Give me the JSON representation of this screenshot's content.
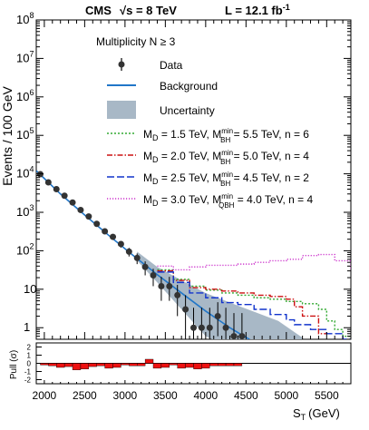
{
  "header": {
    "experiment": "CMS",
    "energy_label": "√s = 8 TeV",
    "lumi_label": "L = 12.1 fb",
    "lumi_sup": "-1"
  },
  "chart_data": [
    {
      "type": "line",
      "panel": "main",
      "ylabel": "Events / 100 GeV",
      "yscale": "log",
      "ylim": [
        0.5,
        100000000
      ],
      "xlim": [
        1900,
        5800
      ],
      "y_ticks": [
        {
          "value": 1,
          "label": "1"
        },
        {
          "value": 10,
          "label": "10"
        },
        {
          "value": 100,
          "label": "10",
          "exp": "2"
        },
        {
          "value": 1000,
          "label": "10",
          "exp": "3"
        },
        {
          "value": 10000,
          "label": "10",
          "exp": "4"
        },
        {
          "value": 100000,
          "label": "10",
          "exp": "5"
        },
        {
          "value": 1000000,
          "label": "10",
          "exp": "6"
        },
        {
          "value": 10000000,
          "label": "10",
          "exp": "7"
        },
        {
          "value": 100000000,
          "label": "10",
          "exp": "8"
        }
      ],
      "annotation": "Multiplicity N ≥ 3",
      "legend": {
        "data": "Data",
        "background": "Background",
        "uncertainty": "Uncertainty",
        "signals": [
          {
            "md": "1.5 TeV",
            "mbh": "5.5 TeV",
            "sub": "BH",
            "n": "6"
          },
          {
            "md": "2.0 TeV",
            "mbh": "5.0 TeV",
            "sub": "BH",
            "n": "4"
          },
          {
            "md": "2.5 TeV",
            "mbh": "4.5 TeV",
            "sub": "BH",
            "n": "2"
          },
          {
            "md": "3.0 TeV",
            "mbh": "4.0 TeV",
            "sub": "QBH",
            "n": "4"
          }
        ]
      },
      "data_points": {
        "x": [
          1950,
          2050,
          2150,
          2250,
          2350,
          2450,
          2550,
          2650,
          2750,
          2850,
          2950,
          3050,
          3150,
          3250,
          3350,
          3450,
          3550,
          3650,
          3750,
          3850,
          3950,
          4050,
          4150,
          4250,
          4350,
          4450
        ],
        "y": [
          9800,
          6000,
          4000,
          2700,
          1800,
          1150,
          780,
          500,
          320,
          230,
          150,
          95,
          65,
          38,
          23,
          12,
          12,
          7,
          3,
          1,
          1,
          1,
          2,
          1,
          0.6,
          0.6
        ],
        "err_low": [
          300,
          200,
          160,
          130,
          110,
          90,
          70,
          55,
          45,
          38,
          30,
          24,
          20,
          15,
          11,
          7,
          7,
          5,
          3,
          0.8,
          0.8,
          0.8,
          1.4,
          0.8,
          0.5,
          0.5
        ],
        "err_high": [
          300,
          200,
          160,
          130,
          110,
          90,
          70,
          55,
          45,
          38,
          30,
          24,
          20,
          15,
          11,
          9,
          9,
          6,
          4,
          2.3,
          2.3,
          2.3,
          2.6,
          2.3,
          1.8,
          1.8
        ]
      },
      "background": {
        "x": [
          1900,
          2200,
          2500,
          2800,
          3100,
          3400,
          3700,
          4000,
          4300,
          4600,
          4750
        ],
        "y": [
          12000,
          3000,
          850,
          250,
          76,
          24,
          8,
          2.7,
          1,
          0.42,
          0.28
        ]
      },
      "uncertainty_band": {
        "x": [
          3150,
          3400,
          3700,
          4000,
          4300,
          4600,
          4900,
          5200
        ],
        "low": [
          55,
          15,
          3,
          0.6,
          0.3,
          0.2,
          0.2,
          0.2
        ],
        "high": [
          95,
          38,
          17,
          8,
          4.5,
          2.6,
          1.5,
          0.55
        ]
      },
      "signal_curves": [
        {
          "color": "#33aa33",
          "dash": "2,2",
          "x": [
            3400,
            3600,
            3800,
            4000,
            4200,
            4400,
            4600,
            4800,
            5000,
            5200,
            5400,
            5500,
            5600,
            5700
          ],
          "y": [
            32,
            18,
            12,
            9.5,
            8,
            7,
            6,
            5.5,
            4.8,
            4.2,
            3,
            1.5,
            0.9,
            0.6
          ]
        },
        {
          "color": "#cc1111",
          "dash": "6,2,1.5,2",
          "x": [
            3400,
            3600,
            3800,
            4000,
            4200,
            4400,
            4600,
            4800,
            5000,
            5100,
            5200,
            5400
          ],
          "y": [
            30,
            17,
            11,
            10,
            9,
            8,
            7,
            6.5,
            5.5,
            3.5,
            2,
            0.7
          ]
        },
        {
          "color": "#1133cc",
          "dash": "8,3",
          "x": [
            3400,
            3600,
            3800,
            4000,
            4200,
            4400,
            4600,
            4800,
            5000,
            5100,
            5300,
            5500,
            5700
          ],
          "y": [
            28,
            15,
            8,
            6,
            4.5,
            4,
            3,
            2.2,
            1.6,
            1.2,
            0.9,
            0.7,
            0.5
          ]
        },
        {
          "color": "#cc33cc",
          "dash": "1.2,1.8",
          "x": [
            3400,
            3600,
            3800,
            4000,
            4200,
            4400,
            4600,
            4800,
            5000,
            5200,
            5400,
            5600,
            5800
          ],
          "y": [
            40,
            32,
            38,
            42,
            42,
            45,
            50,
            55,
            60,
            75,
            80,
            55,
            30
          ]
        }
      ]
    },
    {
      "type": "bar",
      "panel": "pull",
      "ylabel": "Pull (σ)",
      "ylim": [
        -2.5,
        2.5
      ],
      "y_ticks": [
        -2,
        -1,
        0,
        1,
        2
      ],
      "xlabel": "S",
      "xlabel_sub": "T",
      "xlabel_unit": "(GeV)",
      "xlim": [
        1900,
        5800
      ],
      "x_ticks": [
        2000,
        2500,
        3000,
        3500,
        4000,
        4500,
        5000,
        5500
      ],
      "bars": {
        "x": [
          2000,
          2100,
          2200,
          2300,
          2400,
          2500,
          2600,
          2700,
          2800,
          2900,
          3000,
          3100,
          3200,
          3300,
          3400,
          3500,
          3600,
          3700,
          3800,
          3900,
          4000,
          4100,
          4200,
          4300,
          4400
        ],
        "values": [
          -0.2,
          -0.3,
          -0.5,
          -0.4,
          -0.8,
          -0.7,
          -0.4,
          -0.3,
          -0.6,
          -0.5,
          -0.2,
          -0.3,
          -0.3,
          0.5,
          -0.6,
          -0.5,
          -0.2,
          -0.6,
          -0.5,
          -0.7,
          -0.6,
          -0.3,
          -0.3,
          -0.3,
          -0.3
        ]
      },
      "bar_color": "#ee1111"
    }
  ]
}
